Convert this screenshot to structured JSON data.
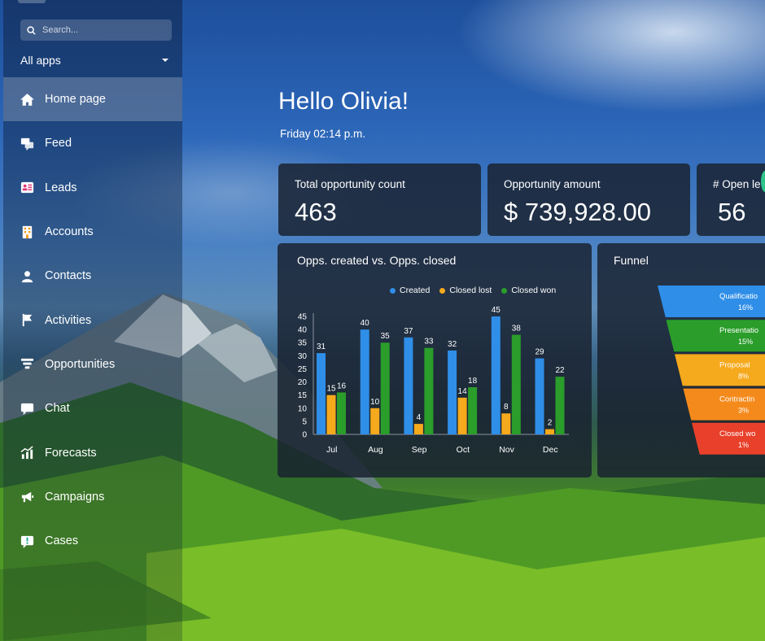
{
  "sidebar": {
    "search_placeholder": "Search...",
    "apps_filter": "All apps",
    "items": [
      {
        "label": "Home page",
        "icon": "home-icon",
        "color": "#b23fc9",
        "active": true
      },
      {
        "label": "Feed",
        "icon": "feed-icon",
        "color": "#e94b35",
        "active": false
      },
      {
        "label": "Leads",
        "icon": "leads-icon",
        "color": "#e53573",
        "active": false
      },
      {
        "label": "Accounts",
        "icon": "accounts-icon",
        "color": "#f39a1c",
        "active": false
      },
      {
        "label": "Contacts",
        "icon": "contacts-icon",
        "color": "#7a3fd6",
        "active": false
      },
      {
        "label": "Activities",
        "icon": "flag-icon",
        "color": "#2a6fd8",
        "active": false
      },
      {
        "label": "Opportunities",
        "icon": "funnel-icon",
        "color": "#1e8fe0",
        "active": false
      },
      {
        "label": "Chat",
        "icon": "chat-icon",
        "color": "#1ba3e6",
        "active": false
      },
      {
        "label": "Forecasts",
        "icon": "forecast-icon",
        "color": "#1aa37a",
        "active": false
      },
      {
        "label": "Campaigns",
        "icon": "megaphone-icon",
        "color": "#23a455",
        "active": false
      },
      {
        "label": "Cases",
        "icon": "case-icon",
        "color": "#18a890",
        "active": false
      }
    ]
  },
  "main": {
    "greeting": "Hello Olivia!",
    "datetime": "Friday 02:14 p.m."
  },
  "kpis": [
    {
      "label": "Total opportunity count",
      "value": "463"
    },
    {
      "label": "Opportunity amount",
      "value": "$ 739,928.00"
    },
    {
      "label": "# Open le",
      "value": "56"
    }
  ],
  "chart_data": [
    {
      "type": "bar",
      "title": "Opps. created vs. Opps. closed",
      "categories": [
        "Jul",
        "Aug",
        "Sep",
        "Oct",
        "Nov",
        "Dec"
      ],
      "series": [
        {
          "name": "Created",
          "color": "#2f8ee8",
          "values": [
            31,
            40,
            37,
            32,
            45,
            29
          ]
        },
        {
          "name": "Closed lost",
          "color": "#f5a91c",
          "values": [
            15,
            10,
            4,
            14,
            8,
            2
          ]
        },
        {
          "name": "Closed won",
          "color": "#2a9d2a",
          "values": [
            16,
            35,
            33,
            18,
            38,
            22
          ]
        }
      ],
      "ylim": [
        0,
        45
      ],
      "yticks": [
        0,
        5,
        10,
        15,
        20,
        25,
        30,
        35,
        40,
        45
      ],
      "legend": "top-right",
      "grid": false
    },
    {
      "type": "funnel",
      "title": "Funnel",
      "stages": [
        {
          "label": "Qualificatio",
          "value": "16%",
          "color": "#2f8ee8"
        },
        {
          "label": "Presentatio",
          "value": "15%",
          "color": "#2a9d2a"
        },
        {
          "label": "Proposal",
          "value": "8%",
          "color": "#f5a91c"
        },
        {
          "label": "Contractin",
          "value": "3%",
          "color": "#f58a1c"
        },
        {
          "label": "Closed wo",
          "value": "1%",
          "color": "#e8402a"
        }
      ]
    }
  ]
}
